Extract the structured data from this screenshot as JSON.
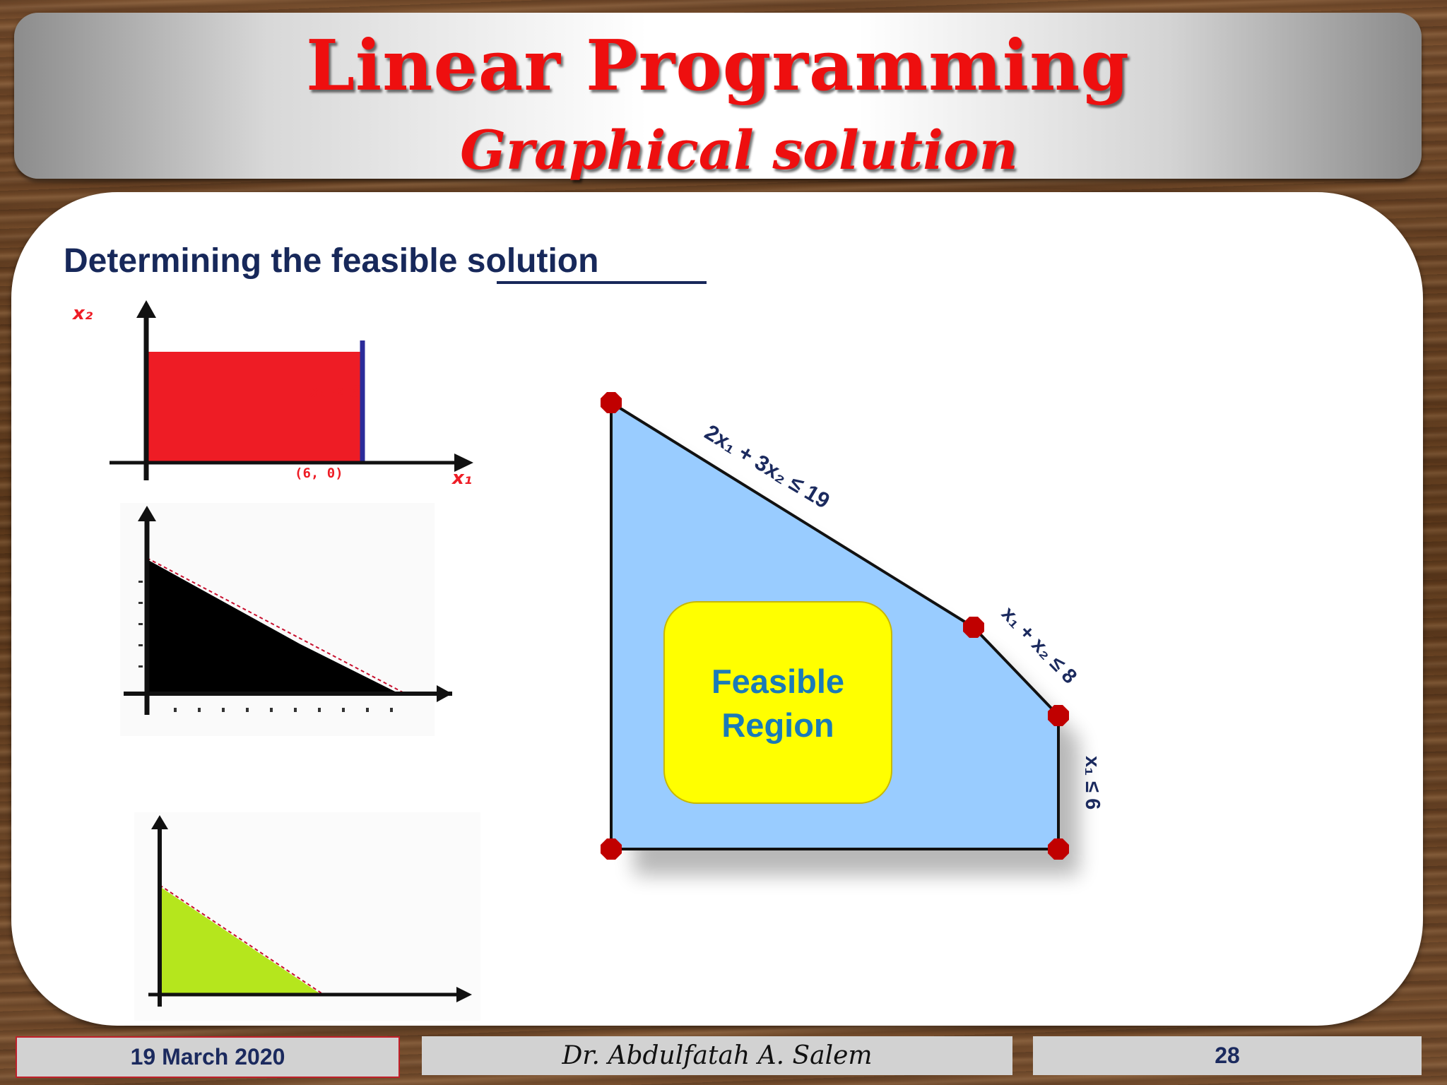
{
  "title": "Linear Programming",
  "subtitle": "Graphical solution",
  "heading": "Determining the feasible solution",
  "panel1": {
    "y_label": "x₂",
    "x_label": "x₁",
    "constraint": "x₁ ≤  6",
    "point": "(6, 0)",
    "fill": "#ee1c25"
  },
  "panel2": {
    "fill": "#000000"
  },
  "panel3": {
    "fill": "#b5e61d"
  },
  "diagram": {
    "region_label_line1": "Feasible",
    "region_label_line2": "Region",
    "constraint1": "2x₁ + 3x₂  ≤ 19",
    "constraint2": "x₁ + x₂ ≤ 8",
    "constraint3": "x₁ ≤ 6",
    "region_color": "#99ccff",
    "label_color": "#ffff00",
    "vertex_color": "#c00000"
  },
  "footer": {
    "date": "19 March 2020",
    "author": "Dr. Abdulfatah A. Salem",
    "page": "28"
  }
}
